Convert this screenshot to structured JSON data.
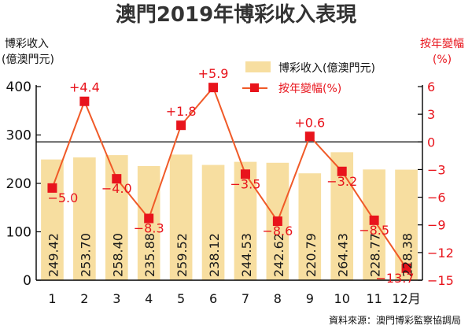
{
  "chart_data": {
    "type": "bar",
    "title": "澳門2019年博彩收入表現",
    "categories": [
      "1",
      "2",
      "3",
      "4",
      "5",
      "6",
      "7",
      "8",
      "9",
      "10",
      "11",
      "12月"
    ],
    "series": [
      {
        "name": "博彩收入(億澳門元)",
        "type": "bar",
        "axis": "left",
        "values": [
          249.42,
          253.7,
          258.4,
          235.88,
          259.52,
          238.12,
          244.53,
          242.62,
          220.79,
          264.43,
          228.77,
          228.38
        ]
      },
      {
        "name": "按年變幅(%)",
        "type": "line",
        "axis": "right",
        "values": [
          -5.0,
          4.4,
          -4.0,
          -8.3,
          1.8,
          5.9,
          -3.5,
          -8.6,
          0.6,
          -3.2,
          -8.5,
          -13.7
        ]
      }
    ],
    "bar_labels": [
      "249.42",
      "253.70",
      "258.40",
      "235.88",
      "259.52",
      "238.12",
      "244.53",
      "242.62",
      "220.79",
      "264.43",
      "228.77",
      "228.38"
    ],
    "line_labels": [
      "−5.0",
      "+4.4",
      "−4.0",
      "−8.3",
      "+1.8",
      "+5.9",
      "−3.5",
      "−8.6",
      "+0.6",
      "−3.2",
      "−8.5",
      "−13.7"
    ],
    "left_axis": {
      "label_line1": "博彩收入",
      "label_line2": "(億澳門元)",
      "ylim": [
        0,
        400
      ],
      "ticks": [
        0,
        100,
        200,
        300,
        400
      ]
    },
    "right_axis": {
      "label_line1": "按年變幅",
      "label_line2": "(%)",
      "ylim": [
        -15,
        6
      ],
      "ticks": [
        6,
        3,
        0,
        -3,
        -6,
        -9,
        -12,
        -15
      ]
    },
    "legend": {
      "placement": "top-right",
      "entries": [
        "博彩收入(億澳門元)",
        "按年變幅(%)"
      ]
    },
    "source": "資料來源：澳門博彩監察協調局",
    "grid": false
  },
  "colors": {
    "bar": "#f7dea0",
    "line": "#f05a28",
    "marker": "#e8141c",
    "right_axis": "#e8141c",
    "text": "#111111",
    "title": "#333333"
  }
}
